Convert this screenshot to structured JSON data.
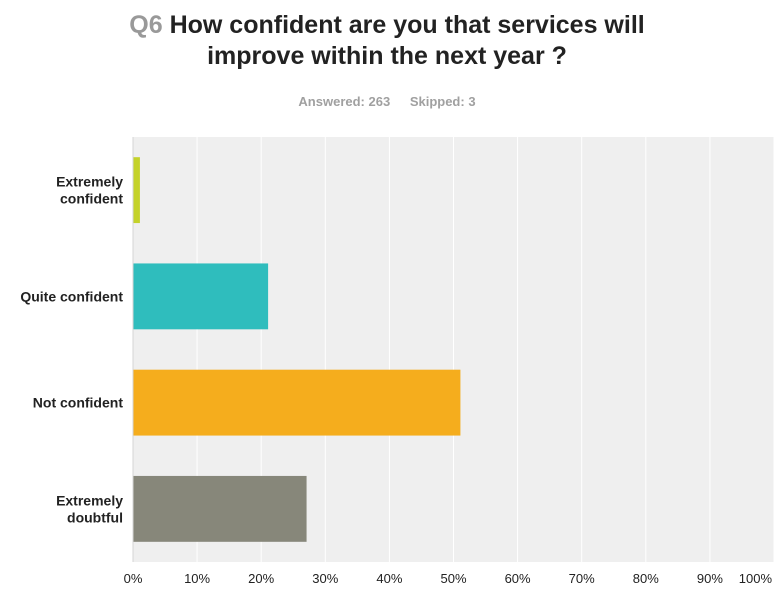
{
  "header": {
    "question_number": "Q6",
    "title_line1": "How confident are you that services will",
    "title_line2": "improve within the next year ?",
    "answered": "Answered: 263",
    "skipped": "Skipped: 3"
  },
  "chart_data": {
    "type": "bar",
    "orientation": "horizontal",
    "title": "How confident are you that services will improve within the next year ?",
    "categories": [
      [
        "Extremely",
        "confident"
      ],
      [
        "Quite confident"
      ],
      [
        "Not confident"
      ],
      [
        "Extremely",
        "doubtful"
      ]
    ],
    "values": [
      1,
      21,
      51,
      27
    ],
    "colors": [
      "#c4d22a",
      "#2fbdbd",
      "#f5ad1d",
      "#87877a"
    ],
    "xlim": [
      0,
      100
    ],
    "xticks": [
      0,
      10,
      20,
      30,
      40,
      50,
      60,
      70,
      80,
      90,
      100
    ],
    "xtick_labels": [
      "0%",
      "10%",
      "20%",
      "30%",
      "40%",
      "50%",
      "60%",
      "70%",
      "80%",
      "90%",
      "100%"
    ],
    "grid": true,
    "background": "#efefef",
    "grid_color": "#ffffff"
  }
}
